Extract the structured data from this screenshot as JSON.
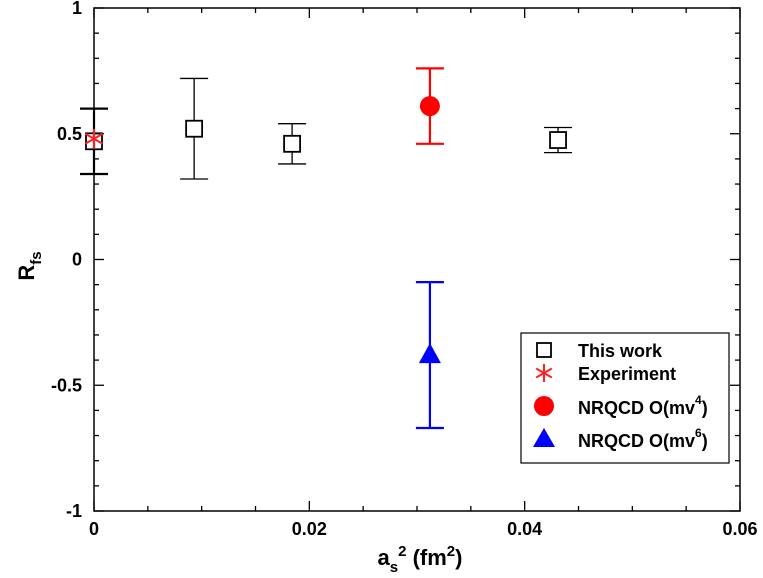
{
  "chart_data": {
    "type": "scatter",
    "title": "",
    "xlabel": {
      "main": "a",
      "sub": "s",
      "sup": "2",
      "unit_open": " (fm",
      "unit_sup": "2",
      "unit_close": ")"
    },
    "ylabel": {
      "main": "R",
      "sub": "fs"
    },
    "xlim": [
      0,
      0.06
    ],
    "ylim": [
      -1,
      1
    ],
    "x_ticks": [
      {
        "value": 0,
        "label": "0"
      },
      {
        "value": 0.02,
        "label": "0.02"
      },
      {
        "value": 0.04,
        "label": "0.04"
      },
      {
        "value": 0.06,
        "label": "0.06"
      }
    ],
    "y_ticks": [
      {
        "value": -1,
        "label": "-1"
      },
      {
        "value": -0.5,
        "label": "-0.5"
      },
      {
        "value": 0,
        "label": "0"
      },
      {
        "value": 0.5,
        "label": "0.5"
      },
      {
        "value": 1,
        "label": "1"
      }
    ],
    "x_minor_step": 0.005,
    "y_minor_step": 0.1,
    "series": [
      {
        "name": "This work",
        "marker": "open-square",
        "color": "#000000",
        "points": [
          {
            "x": 0.0,
            "y": 0.47,
            "ylo": 0.34,
            "yhi": 0.6
          },
          {
            "x": 0.0093,
            "y": 0.52,
            "ylo": 0.32,
            "yhi": 0.72
          },
          {
            "x": 0.0184,
            "y": 0.46,
            "ylo": 0.38,
            "yhi": 0.54
          },
          {
            "x": 0.0431,
            "y": 0.475,
            "ylo": 0.425,
            "yhi": 0.525
          }
        ]
      },
      {
        "name": "Experiment",
        "marker": "star",
        "color": "#ff2020",
        "points": [
          {
            "x": 0.0,
            "y": 0.48
          }
        ]
      },
      {
        "name": "NRQCD O(mv4)",
        "legend_main": "NRQCD O(mv",
        "legend_sup": "4",
        "legend_close": ")",
        "marker": "filled-circle",
        "color": "#ff0000",
        "points": [
          {
            "x": 0.0312,
            "y": 0.61,
            "ylo": 0.46,
            "yhi": 0.76
          }
        ]
      },
      {
        "name": "NRQCD O(mv6)",
        "legend_main": "NRQCD O(mv",
        "legend_sup": "6",
        "legend_close": ")",
        "marker": "filled-triangle",
        "color": "#0000ff",
        "points": [
          {
            "x": 0.0312,
            "y": -0.38,
            "ylo": -0.67,
            "yhi": -0.09
          }
        ]
      }
    ],
    "legend_position": "lower-right"
  }
}
